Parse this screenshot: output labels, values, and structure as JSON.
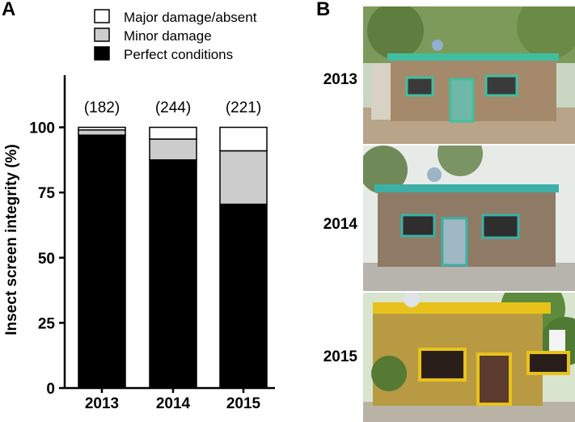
{
  "panels": {
    "a_letter": "A",
    "b_letter": "B"
  },
  "chart_data": {
    "type": "bar",
    "stacked": true,
    "categories": [
      "2013",
      "2014",
      "2015"
    ],
    "ylabel": "Insect screen integrity (%)",
    "ylim": [
      0,
      120
    ],
    "yticks": [
      0,
      25,
      50,
      75,
      100
    ],
    "n_labels": [
      "(182)",
      "(244)",
      "(221)"
    ],
    "series": [
      {
        "name": "Perfect conditions",
        "color": "#000000",
        "values": [
          97,
          87.5,
          70.5
        ]
      },
      {
        "name": "Minor damage",
        "color": "#cccccc",
        "values": [
          2,
          8,
          20.5
        ]
      },
      {
        "name": "Major damage/absent",
        "color": "#ffffff",
        "values": [
          1,
          4.5,
          9
        ]
      }
    ],
    "legend_order": [
      "Major damage/absent",
      "Minor damage",
      "Perfect conditions"
    ],
    "legend_position": "top"
  },
  "photos": [
    {
      "year": "2013",
      "trim_color": "#3fbfa0",
      "wall_color": "#a48a6a"
    },
    {
      "year": "2014",
      "trim_color": "#3cb0a6",
      "wall_color": "#8f7a66"
    },
    {
      "year": "2015",
      "trim_color": "#e8c21a",
      "wall_color": "#b79a42"
    }
  ]
}
